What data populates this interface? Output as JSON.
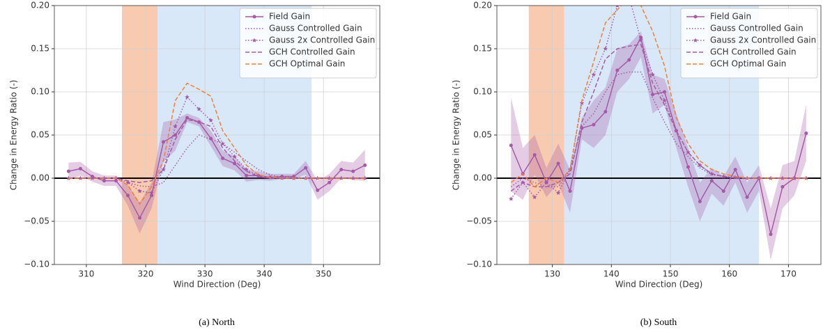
{
  "chart_data": [
    {
      "type": "line",
      "caption": "(a) North",
      "x_label": "Wind Direction (Deg)",
      "y_label": "Change in Energy Ratio (-)",
      "x": [
        307,
        309,
        311,
        313,
        315,
        317,
        319,
        321,
        323,
        325,
        327,
        329,
        331,
        333,
        335,
        337,
        339,
        341,
        343,
        345,
        347,
        349,
        351,
        353,
        355,
        357
      ],
      "xlim": [
        304.6,
        359.5
      ],
      "xticks": [
        310,
        320,
        330,
        340,
        350
      ],
      "ylim": [
        -0.1,
        0.2
      ],
      "yticks": [
        {
          "value": -0.1,
          "label": "−0.10"
        },
        {
          "value": -0.05,
          "label": "−0.05"
        },
        {
          "value": 0,
          "label": "0.00"
        },
        {
          "value": 0.05,
          "label": "0.05"
        },
        {
          "value": 0.1,
          "label": "0.10"
        },
        {
          "value": 0.15,
          "label": "0.15"
        },
        {
          "value": 0.2,
          "label": "0.20"
        }
      ],
      "grid": true,
      "reference_line": 0,
      "legend": "upper right",
      "regions": [
        {
          "start": 316,
          "end": 322,
          "color": "#f8cbb0"
        },
        {
          "start": 322,
          "end": 348,
          "color": "#d8e8f8"
        }
      ],
      "series": [
        {
          "name": "Field Gain",
          "color": "#a45aa7",
          "line_style": "solid",
          "marker": "circle",
          "values": [
            0.008,
            0.011,
            0.002,
            -0.003,
            -0.003,
            -0.02,
            -0.046,
            -0.02,
            0.042,
            0.05,
            0.07,
            0.065,
            0.046,
            0.023,
            0.017,
            0.003,
            0.003,
            0.001,
            0.002,
            0.002,
            0.012,
            -0.014,
            -0.005,
            0.01,
            0.008,
            0.015
          ],
          "ci_upper": [
            0.018,
            0.019,
            0.008,
            0.003,
            0.003,
            -0.008,
            -0.028,
            -0.005,
            0.065,
            0.068,
            0.075,
            0.07,
            0.055,
            0.032,
            0.025,
            0.01,
            0.008,
            0.005,
            0.005,
            0.005,
            0.02,
            -0.003,
            0.005,
            0.02,
            0.018,
            0.033
          ],
          "ci_lower": [
            -0.002,
            0.003,
            -0.004,
            -0.009,
            -0.009,
            -0.032,
            -0.064,
            -0.035,
            0.019,
            0.032,
            0.065,
            0.06,
            0.037,
            0.014,
            0.009,
            -0.004,
            -0.002,
            -0.003,
            -0.001,
            -0.001,
            0.004,
            -0.025,
            -0.015,
            0,
            -0.002,
            -0.003
          ]
        },
        {
          "name": "Gauss Controlled Gain",
          "color": "#a45aa7",
          "line_style": "dotted",
          "marker": "none",
          "values": [
            0,
            0,
            0,
            0,
            0,
            -0.005,
            -0.009,
            -0.01,
            -0.005,
            0.015,
            0.035,
            0.05,
            0.045,
            0.04,
            0.03,
            0.02,
            0.01,
            0.004,
            0.001,
            0.001,
            0,
            0,
            0,
            0,
            0,
            0
          ]
        },
        {
          "name": "Gauss 2x Controlled Gain",
          "color": "#a45aa7",
          "line_style": "dotted",
          "marker": "star",
          "values": [
            0,
            0,
            0,
            0,
            0,
            -0.005,
            -0.015,
            -0.017,
            0.01,
            0.06,
            0.094,
            0.08,
            0.067,
            0.04,
            0.025,
            0.01,
            0.003,
            0.001,
            0,
            0,
            0,
            0,
            0,
            0,
            0,
            0
          ]
        },
        {
          "name": "GCH Controlled Gain",
          "color": "#a45aa7",
          "line_style": "dashed",
          "marker": "none",
          "values": [
            0,
            0,
            0,
            0,
            0,
            -0.003,
            -0.005,
            -0.003,
            0.01,
            0.045,
            0.068,
            0.065,
            0.06,
            0.035,
            0.02,
            0.008,
            0.002,
            0,
            0,
            0,
            0,
            0,
            0,
            0,
            0,
            0
          ]
        },
        {
          "name": "GCH Optimal Gain",
          "color": "#f07f3c",
          "line_style": "dashed",
          "marker": "none",
          "values": [
            0,
            0,
            0,
            0,
            0,
            -0.008,
            -0.03,
            -0.01,
            0.02,
            0.09,
            0.11,
            0.103,
            0.095,
            0.055,
            0.035,
            0.015,
            0.004,
            0.001,
            0,
            0,
            0,
            0,
            0,
            0,
            0,
            0
          ]
        }
      ]
    },
    {
      "type": "line",
      "caption": "(b) South",
      "x_label": "Wind Direction (Deg)",
      "y_label": "Change in Energy Ratio (-)",
      "x": [
        123,
        125,
        127,
        129,
        131,
        133,
        135,
        137,
        139,
        141,
        143,
        145,
        147,
        149,
        151,
        153,
        155,
        157,
        159,
        161,
        163,
        165,
        167,
        169,
        171,
        173
      ],
      "xlim": [
        120.6,
        175.5
      ],
      "xticks": [
        130,
        140,
        150,
        160,
        170
      ],
      "ylim": [
        -0.1,
        0.2
      ],
      "yticks": [
        {
          "value": -0.1,
          "label": "−0.10"
        },
        {
          "value": -0.05,
          "label": "−0.05"
        },
        {
          "value": 0,
          "label": "0.00"
        },
        {
          "value": 0.05,
          "label": "0.05"
        },
        {
          "value": 0.1,
          "label": "0.10"
        },
        {
          "value": 0.15,
          "label": "0.15"
        },
        {
          "value": 0.2,
          "label": "0.20"
        }
      ],
      "grid": true,
      "reference_line": 0,
      "legend": "upper right",
      "regions": [
        {
          "start": 126,
          "end": 132,
          "color": "#f8cbb0"
        },
        {
          "start": 132,
          "end": 165,
          "color": "#d8e8f8"
        }
      ],
      "series": [
        {
          "name": "Field Gain",
          "color": "#a45aa7",
          "line_style": "solid",
          "marker": "circle",
          "values": [
            0.038,
            0.005,
            0.027,
            -0.005,
            0.017,
            -0.015,
            0.058,
            0.062,
            0.077,
            0.125,
            0.137,
            0.163,
            0.097,
            0.1,
            0.055,
            0.013,
            -0.027,
            -0.003,
            -0.015,
            0.01,
            -0.022,
            0,
            -0.065,
            -0.01,
            0,
            0.052
          ],
          "ci_upper": [
            0.093,
            0.035,
            0.05,
            0.012,
            0.04,
            0.01,
            0.07,
            0.09,
            0.105,
            0.15,
            0.155,
            0.17,
            0.12,
            0.115,
            0.075,
            0.035,
            -0.005,
            0.012,
            0.002,
            0.025,
            -0.005,
            0.015,
            -0.035,
            0.015,
            0.02,
            0.085
          ],
          "ci_lower": [
            -0.015,
            -0.025,
            0.004,
            -0.022,
            -0.006,
            -0.04,
            0.045,
            0.035,
            0.05,
            0.1,
            0.115,
            0.14,
            0.075,
            0.085,
            0.035,
            -0.01,
            -0.05,
            -0.018,
            -0.032,
            -0.005,
            -0.04,
            -0.015,
            -0.095,
            -0.035,
            -0.02,
            0.02
          ]
        },
        {
          "name": "Gauss Controlled Gain",
          "color": "#a45aa7",
          "line_style": "dotted",
          "marker": "none",
          "values": [
            -0.01,
            0,
            -0.005,
            -0.01,
            -0.01,
            0.01,
            0.06,
            0.075,
            0.1,
            0.12,
            0.123,
            0.123,
            0.093,
            0.065,
            0.04,
            0.025,
            0.012,
            0.004,
            0.002,
            0.001,
            0,
            0,
            0,
            0,
            0,
            0
          ]
        },
        {
          "name": "Gauss 2x Controlled Gain",
          "color": "#a45aa7",
          "line_style": "dotted",
          "marker": "star",
          "values": [
            -0.024,
            -0.005,
            -0.022,
            -0.005,
            -0.017,
            0.01,
            0.087,
            0.12,
            0.15,
            0.2,
            0.21,
            0.16,
            0.12,
            0.09,
            0.055,
            0.03,
            0.015,
            0.005,
            0.002,
            0.001,
            0,
            0,
            0,
            0,
            0,
            0
          ]
        },
        {
          "name": "GCH Controlled Gain",
          "color": "#a45aa7",
          "line_style": "dashed",
          "marker": "none",
          "values": [
            -0.015,
            -0.005,
            -0.01,
            -0.01,
            -0.005,
            0.005,
            0.065,
            0.1,
            0.138,
            0.15,
            0.153,
            0.155,
            0.11,
            0.085,
            0.055,
            0.03,
            0.015,
            0.005,
            0.002,
            0,
            0,
            0,
            0,
            0,
            0,
            0
          ]
        },
        {
          "name": "GCH Optimal Gain",
          "color": "#f07f3c",
          "line_style": "dashed",
          "marker": "none",
          "values": [
            -0.005,
            0.005,
            -0.01,
            0,
            -0.005,
            0.01,
            0.09,
            0.135,
            0.18,
            0.195,
            0.21,
            0.2,
            0.17,
            0.13,
            0.07,
            0.04,
            0.02,
            0.01,
            0.005,
            0.002,
            0,
            0,
            0,
            0,
            0,
            0
          ]
        }
      ]
    }
  ]
}
